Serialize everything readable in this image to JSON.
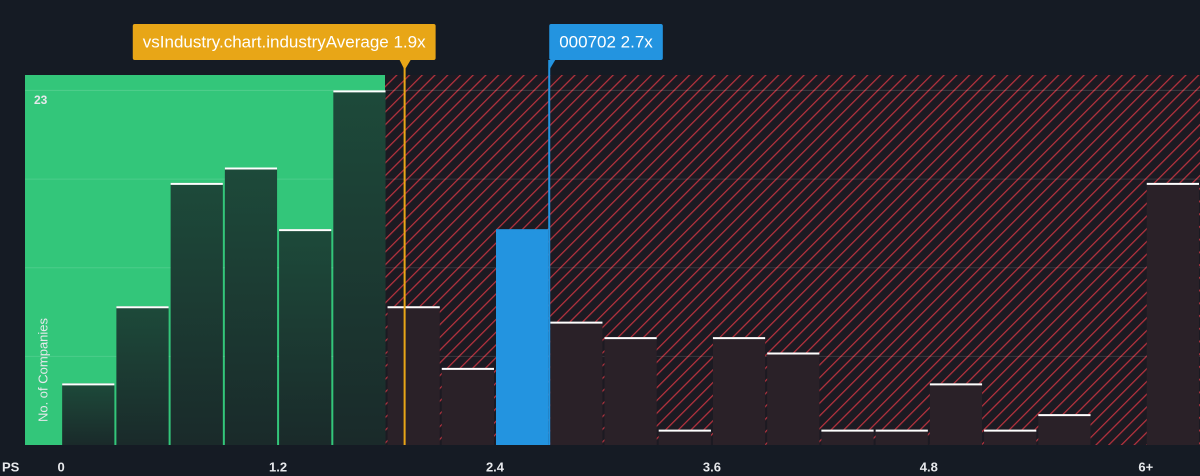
{
  "chart_data": {
    "type": "histogram",
    "x_label": "PS",
    "y_label": "No. of Companies",
    "bins": [
      0,
      0.3,
      0.6,
      0.9,
      1.2,
      1.5,
      1.8,
      2.1,
      2.4,
      2.7,
      3.0,
      3.3,
      3.6,
      3.9,
      4.2,
      4.5,
      4.8,
      5.1,
      5.4,
      5.7,
      6.0,
      6.3
    ],
    "values": [
      4,
      9,
      17,
      18,
      14,
      23,
      9,
      5,
      14,
      8,
      7,
      1,
      7,
      6,
      1,
      1,
      4,
      1,
      2,
      0,
      17
    ],
    "color": "#1f4637",
    "highlight_color": "#2394e0",
    "xlim": [
      -0.2,
      6.3
    ],
    "xticks": [
      0,
      1.2,
      2.4,
      3.6,
      4.8,
      {
        "value": 6,
        "label": "6+"
      }
    ],
    "ylim": [
      0,
      24
    ],
    "yticks": [
      23
    ],
    "annotations": [
      {
        "label": "vsIndustry.chart.industryAverage 1.9x",
        "value": 1.9,
        "color": "#e8a617"
      },
      {
        "label": "000702 2.7x",
        "value": 2.7,
        "color": "#2394e0"
      }
    ]
  }
}
